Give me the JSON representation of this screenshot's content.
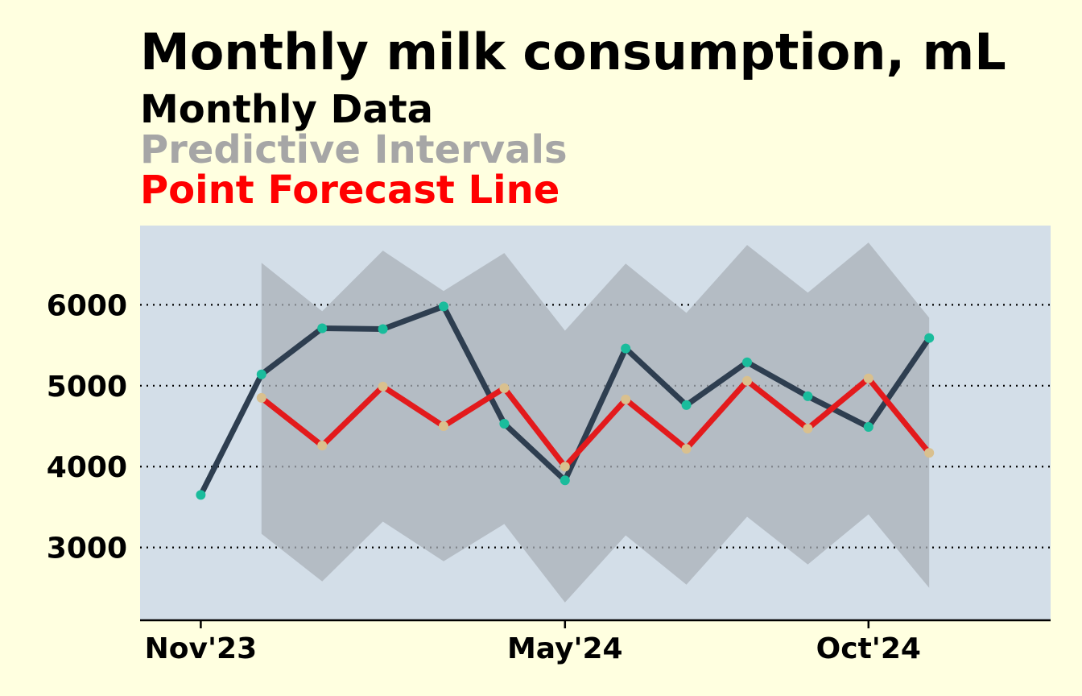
{
  "chart_data": {
    "type": "line",
    "title": "Monthly milk consumption, mL",
    "legend": {
      "placement": "top-left",
      "entries": [
        {
          "label": "Monthly Data",
          "color": "#000000"
        },
        {
          "label": "Predictive Intervals",
          "color": "#a6a6a6"
        },
        {
          "label": "Point Forecast Line",
          "color": "#ff0000"
        }
      ]
    },
    "xlabel": "",
    "ylabel": "",
    "x_tick_labels": [
      {
        "label": "Nov'23",
        "x": "2023-11"
      },
      {
        "label": "May'24",
        "x": "2024-05"
      },
      {
        "label": "Oct'24",
        "x": "2024-10"
      }
    ],
    "y_ticks": [
      3000,
      4000,
      5000,
      6000
    ],
    "ylim": [
      2100,
      6980
    ],
    "xlim": [
      "2023-10",
      "2025-01"
    ],
    "grid": {
      "y": true,
      "x": false,
      "style": "dotted"
    },
    "series": [
      {
        "name": "Monthly Data",
        "color": "#2e3e50",
        "marker_color": "#1abc9c",
        "x": [
          "2023-11",
          "2023-12",
          "2024-01",
          "2024-02",
          "2024-03",
          "2024-04",
          "2024-05",
          "2024-06",
          "2024-07",
          "2024-08",
          "2024-09",
          "2024-10",
          "2024-11"
        ],
        "values": [
          3650,
          5140,
          5710,
          5700,
          5980,
          4530,
          3830,
          5460,
          4760,
          5290,
          4870,
          4490,
          5590
        ]
      },
      {
        "name": "Point Forecast Line",
        "color": "#e31a1c",
        "marker_color": "#d9c08e",
        "x": [
          "2023-12",
          "2024-01",
          "2024-02",
          "2024-03",
          "2024-04",
          "2024-05",
          "2024-06",
          "2024-07",
          "2024-08",
          "2024-09",
          "2024-10",
          "2024-11"
        ],
        "values": [
          4850,
          4260,
          4990,
          4500,
          4970,
          4000,
          4830,
          4220,
          5060,
          4470,
          5090,
          4170
        ]
      },
      {
        "name": "Predictive Intervals",
        "color": "#a9b0b8",
        "x": [
          "2023-12",
          "2024-01",
          "2024-02",
          "2024-03",
          "2024-04",
          "2024-05",
          "2024-06",
          "2024-07",
          "2024-08",
          "2024-09",
          "2024-10",
          "2024-11"
        ],
        "upper": [
          6520,
          5920,
          6670,
          6170,
          6640,
          5680,
          6510,
          5900,
          6740,
          6150,
          6770,
          5840
        ],
        "lower": [
          3170,
          2580,
          3320,
          2830,
          3290,
          2320,
          3150,
          2540,
          3380,
          2790,
          3410,
          2500
        ]
      }
    ],
    "colors": {
      "background": "#ffffe0",
      "plot_background": "#d3dee8",
      "axis": "#000000"
    }
  }
}
